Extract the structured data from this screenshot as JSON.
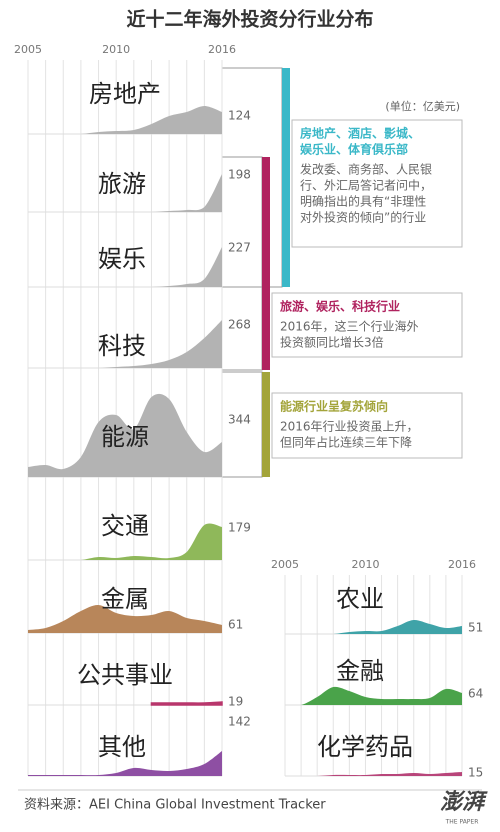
{
  "title": "近十二年海外投资分行业分布",
  "unit": "(单位：亿美元)",
  "source": "资料来源：AEI China Global Investment Tracker",
  "logo": {
    "name": "澎湃",
    "subtitle": "THE PAPER"
  },
  "annotations": [
    {
      "color": "#3bb8c8",
      "heading_lines": [
        "房地产、酒店、影城、",
        "娱乐业、体育俱乐部"
      ],
      "body_lines": [
        "发改委、商务部、人民银",
        "行、外汇局答记者问中，",
        "明确指出的具有“非理性",
        "对外投资的倾向”的行业"
      ]
    },
    {
      "color": "#b0235f",
      "heading_lines": [
        "旅游、娱乐、科技行业"
      ],
      "body_lines": [
        "2016年，这三个行业海外",
        "投资额同比增长3倍"
      ]
    },
    {
      "color": "#a3a43a",
      "heading_lines": [
        "能源行业呈复苏倾向"
      ],
      "body_lines": [
        "2016年行业投资虽上升，",
        "但同年占比连续三年下降"
      ]
    }
  ],
  "chart_data": [
    {
      "type": "area",
      "title": "房地产",
      "total": 124,
      "color": "#b3b3b3",
      "xlim": [
        2005,
        2016
      ],
      "xticks": [
        2005,
        2010,
        2016
      ],
      "ylim": [
        0,
        100
      ],
      "x": [
        2005,
        2006,
        2007,
        2008,
        2009,
        2010,
        2011,
        2012,
        2013,
        2014,
        2015,
        2016
      ],
      "values": [
        0,
        0,
        0,
        0,
        2,
        3,
        4,
        10,
        18,
        22,
        28,
        22
      ]
    },
    {
      "type": "area",
      "title": "旅游",
      "total": 198,
      "color": "#b3b3b3",
      "xlim": [
        2005,
        2016
      ],
      "ylim": [
        0,
        100
      ],
      "x": [
        2005,
        2006,
        2007,
        2008,
        2009,
        2010,
        2011,
        2012,
        2013,
        2014,
        2015,
        2016
      ],
      "values": [
        0,
        0,
        0,
        0,
        0,
        0,
        0,
        0,
        1,
        2,
        5,
        38
      ]
    },
    {
      "type": "area",
      "title": "娱乐",
      "total": 227,
      "color": "#b3b3b3",
      "xlim": [
        2005,
        2016
      ],
      "ylim": [
        0,
        100
      ],
      "x": [
        2005,
        2006,
        2007,
        2008,
        2009,
        2010,
        2011,
        2012,
        2013,
        2014,
        2015,
        2016
      ],
      "values": [
        0,
        0,
        0,
        0,
        0,
        0,
        0,
        0,
        1,
        3,
        8,
        40
      ]
    },
    {
      "type": "area",
      "title": "科技",
      "total": 268,
      "color": "#b3b3b3",
      "xlim": [
        2005,
        2016
      ],
      "ylim": [
        0,
        100
      ],
      "x": [
        2005,
        2006,
        2007,
        2008,
        2009,
        2010,
        2011,
        2012,
        2013,
        2014,
        2015,
        2016
      ],
      "values": [
        0,
        0,
        0,
        0,
        0,
        1,
        2,
        4,
        8,
        16,
        30,
        48
      ]
    },
    {
      "type": "area",
      "title": "能源",
      "total": 344,
      "color": "#b3b3b3",
      "xlim": [
        2005,
        2016
      ],
      "ylim": [
        0,
        100
      ],
      "x": [
        2005,
        2006,
        2007,
        2008,
        2009,
        2010,
        2011,
        2012,
        2013,
        2014,
        2015,
        2016
      ],
      "values": [
        10,
        12,
        8,
        20,
        55,
        62,
        48,
        80,
        78,
        45,
        25,
        35
      ]
    },
    {
      "type": "area",
      "title": "交通",
      "total": 179,
      "color": "#8fb85a",
      "xlim": [
        2005,
        2016
      ],
      "ylim": [
        0,
        100
      ],
      "x": [
        2005,
        2006,
        2007,
        2008,
        2009,
        2010,
        2011,
        2012,
        2013,
        2014,
        2015,
        2016
      ],
      "values": [
        0,
        0,
        0,
        0,
        3,
        2,
        4,
        3,
        2,
        8,
        35,
        33
      ]
    },
    {
      "type": "area",
      "title": "金属",
      "total": 61,
      "color": "#b8865a",
      "xlim": [
        2005,
        2016
      ],
      "ylim": [
        0,
        100
      ],
      "x": [
        2005,
        2006,
        2007,
        2008,
        2009,
        2010,
        2011,
        2012,
        2013,
        2014,
        2015,
        2016
      ],
      "values": [
        3,
        5,
        12,
        22,
        28,
        20,
        17,
        18,
        22,
        15,
        12,
        8
      ]
    },
    {
      "type": "area",
      "title": "公共事业",
      "total": 19,
      "color": "#b8366c",
      "xlim": [
        2005,
        2016
      ],
      "ylim": [
        0,
        100
      ],
      "x": [
        2005,
        2006,
        2007,
        2008,
        2009,
        2010,
        2011,
        2012,
        2013,
        2014,
        2015,
        2016
      ],
      "values": [
        null,
        null,
        null,
        null,
        null,
        null,
        null,
        2,
        2,
        2,
        2,
        3
      ]
    },
    {
      "type": "area",
      "title": "其他",
      "total": 142,
      "color": "#8e4fa3",
      "xlim": [
        2005,
        2016
      ],
      "ylim": [
        0,
        100
      ],
      "x": [
        2005,
        2006,
        2007,
        2008,
        2009,
        2010,
        2011,
        2012,
        2013,
        2014,
        2015,
        2016
      ],
      "values": [
        1,
        1,
        1,
        1,
        1,
        3,
        8,
        6,
        5,
        7,
        12,
        25
      ]
    },
    {
      "type": "area",
      "title": "农业",
      "total": 51,
      "color": "#3fa3a8",
      "xlim": [
        2005,
        2016
      ],
      "xticks": [
        2005,
        2010,
        2016
      ],
      "ylim": [
        0,
        100
      ],
      "x": [
        2005,
        2006,
        2007,
        2008,
        2009,
        2010,
        2011,
        2012,
        2013,
        2014,
        2015,
        2016
      ],
      "values": [
        0,
        0,
        0,
        0,
        2,
        3,
        3,
        8,
        14,
        10,
        6,
        8
      ]
    },
    {
      "type": "area",
      "title": "金融",
      "total": 64,
      "color": "#4aa34a",
      "xlim": [
        2005,
        2016
      ],
      "ylim": [
        0,
        100
      ],
      "x": [
        2005,
        2006,
        2007,
        2008,
        2009,
        2010,
        2011,
        2012,
        2013,
        2014,
        2015,
        2016
      ],
      "values": [
        0,
        0,
        8,
        18,
        14,
        8,
        6,
        6,
        6,
        7,
        16,
        12
      ]
    },
    {
      "type": "area",
      "title": "化学药品",
      "total": 15,
      "color": "#b8457a",
      "xlim": [
        2005,
        2016
      ],
      "ylim": [
        0,
        100
      ],
      "x": [
        2005,
        2006,
        2007,
        2008,
        2009,
        2010,
        2011,
        2012,
        2013,
        2014,
        2015,
        2016
      ],
      "values": [
        0,
        0,
        0,
        1,
        1,
        1,
        2,
        2,
        3,
        2,
        3,
        4
      ]
    }
  ]
}
